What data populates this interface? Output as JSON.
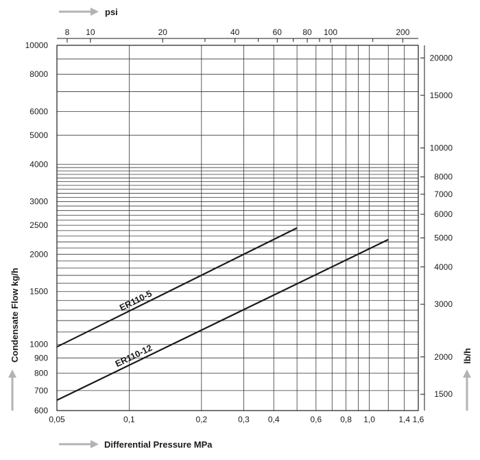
{
  "chart_data": {
    "type": "line",
    "x_scale": "log",
    "y_scale": "log",
    "xlabel": "Differential Pressure MPa",
    "ylabel": "Condensate Flow kg/h",
    "x2label": "psi",
    "y2label": "lb/h",
    "xlim": [
      0.05,
      1.6
    ],
    "ylim": [
      600,
      10000
    ],
    "grid": true,
    "x_ticks": [
      {
        "v": 0.05,
        "label": "0,05"
      },
      {
        "v": 0.1,
        "label": "0,1"
      },
      {
        "v": 0.2,
        "label": "0,2"
      },
      {
        "v": 0.3,
        "label": "0,3"
      },
      {
        "v": 0.4,
        "label": "0,4"
      },
      {
        "v": 0.6,
        "label": "0,6"
      },
      {
        "v": 0.8,
        "label": "0,8"
      },
      {
        "v": 1.0,
        "label": "1,0"
      },
      {
        "v": 1.4,
        "label": "1,4"
      },
      {
        "v": 1.6,
        "label": "1,6"
      }
    ],
    "y_ticks": [
      {
        "v": 600,
        "label": "600"
      },
      {
        "v": 700,
        "label": "700"
      },
      {
        "v": 800,
        "label": "800"
      },
      {
        "v": 900,
        "label": "900"
      },
      {
        "v": 1000,
        "label": "1000"
      },
      {
        "v": 1500,
        "label": "1500"
      },
      {
        "v": 2000,
        "label": "2000"
      },
      {
        "v": 2500,
        "label": "2500"
      },
      {
        "v": 3000,
        "label": "3000"
      },
      {
        "v": 4000,
        "label": "4000"
      },
      {
        "v": 5000,
        "label": "5000"
      },
      {
        "v": 6000,
        "label": "6000"
      },
      {
        "v": 8000,
        "label": "8000"
      },
      {
        "v": 10000,
        "label": "10000"
      }
    ],
    "x2_ticks": [
      {
        "v": 8,
        "label": "8"
      },
      {
        "v": 10,
        "label": "10"
      },
      {
        "v": 20,
        "label": "20"
      },
      {
        "v": 40,
        "label": "40"
      },
      {
        "v": 60,
        "label": "60"
      },
      {
        "v": 80,
        "label": "80"
      },
      {
        "v": 100,
        "label": "100"
      },
      {
        "v": 200,
        "label": "200"
      }
    ],
    "y2_ticks": [
      {
        "v": 1500,
        "label": "1500"
      },
      {
        "v": 2000,
        "label": "2000"
      },
      {
        "v": 3000,
        "label": "3000"
      },
      {
        "v": 4000,
        "label": "4000"
      },
      {
        "v": 5000,
        "label": "5000"
      },
      {
        "v": 6000,
        "label": "6000"
      },
      {
        "v": 7000,
        "label": "7000"
      },
      {
        "v": 8000,
        "label": "8000"
      },
      {
        "v": 10000,
        "label": "10000"
      },
      {
        "v": 15000,
        "label": "15000"
      },
      {
        "v": 20000,
        "label": "20000"
      }
    ],
    "x_grid": [
      0.05,
      0.1,
      0.2,
      0.3,
      0.4,
      0.5,
      0.6,
      0.7,
      0.8,
      0.9,
      1.0,
      1.2,
      1.4,
      1.6
    ],
    "y_grid": [
      600,
      700,
      800,
      900,
      1000,
      1100,
      1200,
      1300,
      1400,
      1500,
      1600,
      1700,
      1800,
      1900,
      2000,
      2100,
      2200,
      2300,
      2400,
      2500,
      2600,
      2700,
      2800,
      2900,
      3000,
      3100,
      3200,
      3300,
      3400,
      3500,
      3600,
      3700,
      3800,
      3900,
      4000,
      5000,
      6000,
      7000,
      8000,
      9000,
      10000
    ],
    "series": [
      {
        "name": "ER110-5",
        "x": [
          0.05,
          0.5
        ],
        "y": [
          980,
          2450
        ]
      },
      {
        "name": "ER110-12",
        "x": [
          0.05,
          1.2
        ],
        "y": [
          650,
          2240
        ]
      }
    ],
    "colors": {
      "line": "#1a1a1a",
      "grid": "#333333",
      "arrow": "#b3b3b3"
    }
  }
}
